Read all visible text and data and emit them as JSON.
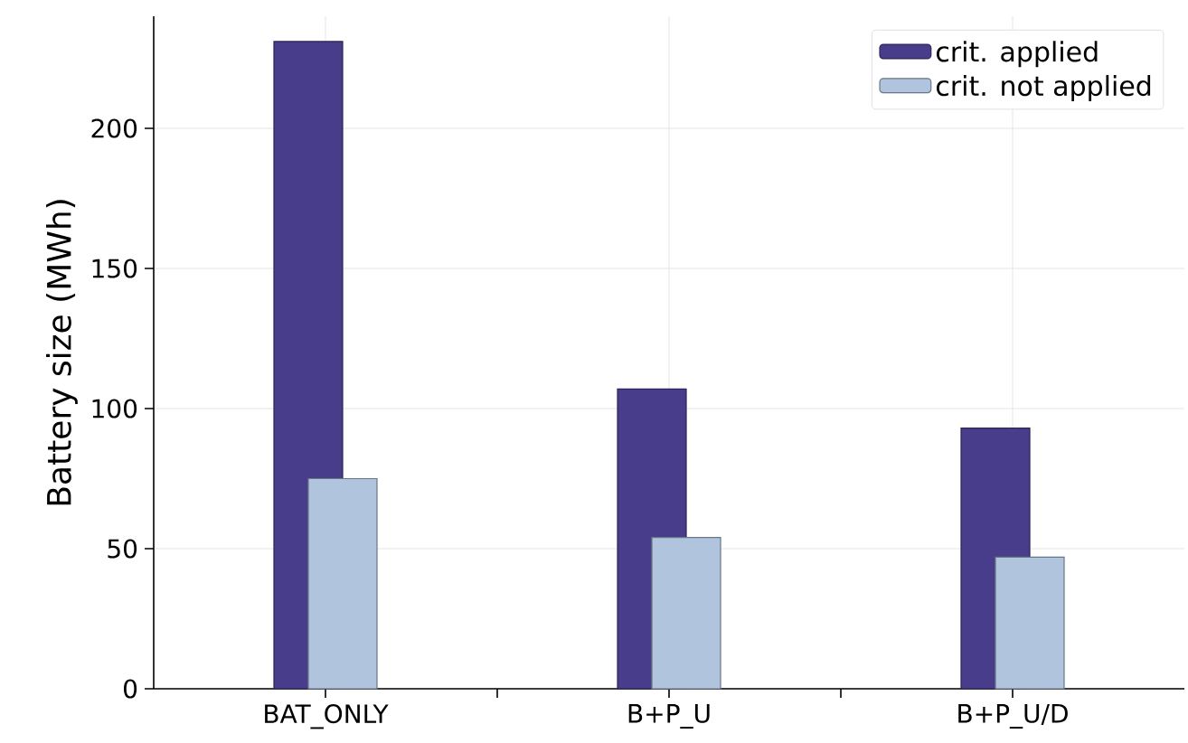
{
  "chart_data": {
    "type": "bar",
    "ylabel": "Battery size (MWh)",
    "categories": [
      "BAT_ONLY",
      "B+P_U",
      "B+P_U/D"
    ],
    "series": [
      {
        "name": "crit. applied",
        "color": "#483d8b",
        "values": [
          231,
          107,
          93
        ]
      },
      {
        "name": "crit. not applied",
        "color": "#b0c4de",
        "values": [
          75,
          54,
          47
        ]
      }
    ],
    "ylim": [
      0,
      240
    ],
    "yticks": [
      0,
      50,
      100,
      150,
      200
    ],
    "grid": true,
    "legend": "top right"
  }
}
